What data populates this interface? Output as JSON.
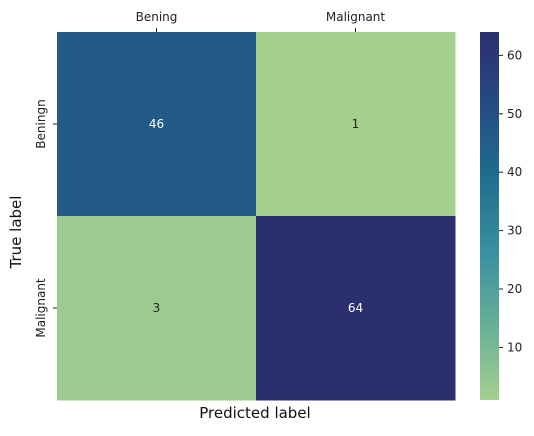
{
  "chart_data": {
    "type": "heatmap",
    "title": "",
    "x_tick_labels": [
      "Bening",
      "Malignant"
    ],
    "y_tick_labels": [
      "Beningn",
      "Malignant"
    ],
    "xlabel": "Predicted label",
    "ylabel": "True label",
    "x_ticks_position": "top",
    "matrix": [
      [
        46,
        1
      ],
      [
        3,
        64
      ]
    ],
    "colorbar": {
      "range": [
        1,
        64
      ],
      "ticks": [
        10,
        20,
        30,
        40,
        50,
        60
      ],
      "colormap": "crest",
      "color_stops": [
        "#a5d08d",
        "#67b098",
        "#3a90a0",
        "#1f6f8e",
        "#254b83",
        "#2c2f6e"
      ]
    },
    "annotation_colors": {
      "light": "#ffffff",
      "dark": "#262626"
    },
    "grid": false
  }
}
